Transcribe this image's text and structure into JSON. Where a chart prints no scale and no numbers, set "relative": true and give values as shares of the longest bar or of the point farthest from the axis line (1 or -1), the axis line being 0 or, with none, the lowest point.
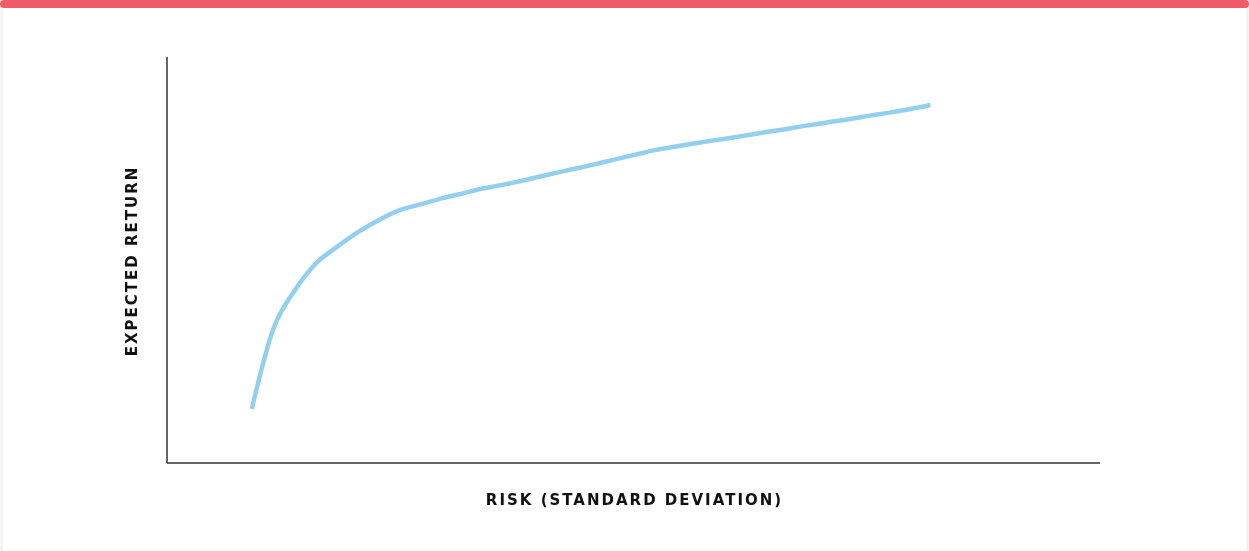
{
  "chart_data": {
    "type": "line",
    "xlabel": "RISK (STANDARD DEVIATION)",
    "ylabel": "EXPECTED RETURN",
    "relative": true,
    "marker": "none",
    "line_style": "solid",
    "categories": [
      null,
      null,
      null,
      null,
      null,
      null,
      null,
      null,
      null,
      null,
      null,
      null,
      null,
      null,
      null,
      null,
      null,
      null,
      null,
      null,
      null,
      null,
      null,
      null,
      null,
      null,
      null,
      null,
      null,
      null,
      null,
      null,
      null,
      null,
      null,
      null,
      null,
      null,
      null,
      null,
      null,
      null,
      null,
      null,
      null
    ],
    "series": [
      {
        "color": "#93cfee",
        "values": [
          null,
          null,
          null,
          null,
          0.151,
          0.372,
          0.48,
          0.556,
          0.603,
          0.645,
          0.679,
          0.707,
          0.723,
          0.74,
          0.754,
          0.768,
          0.779,
          0.792,
          0.806,
          0.819,
          0.832,
          0.846,
          0.86,
          0.874,
          0.884,
          0.894,
          0.903,
          0.912,
          0.922,
          0.931,
          0.941,
          0.95,
          0.959,
          0.969,
          0.978,
          0.988,
          1,
          null,
          null,
          null,
          null,
          null,
          null,
          null,
          null
        ]
      }
    ]
  }
}
